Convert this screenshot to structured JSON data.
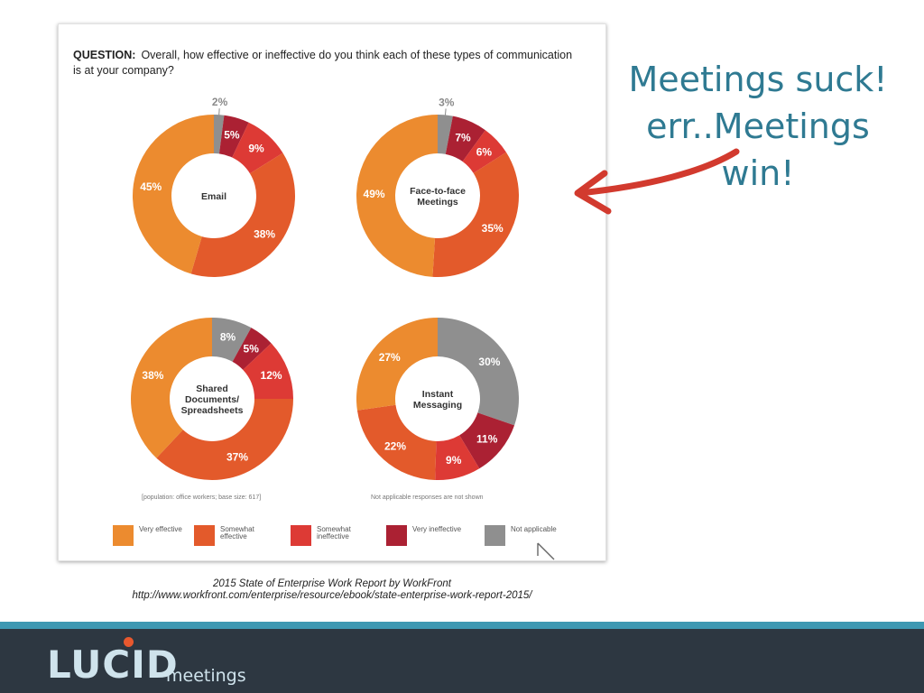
{
  "question": {
    "label": "QUESTION:",
    "text": "Overall, how effective or ineffective do you think each of these types of communication is at your company?"
  },
  "colors": {
    "very_effective": "#ec8b2f",
    "somewhat_effective": "#e35a2b",
    "somewhat_ineffective": "#dd3a35",
    "very_ineffective": "#ab2133",
    "not_applicable": "#8f8f8f"
  },
  "chart_data": [
    {
      "type": "pie",
      "title": "Email",
      "series": [
        {
          "name": "Very effective",
          "value": 45
        },
        {
          "name": "Somewhat effective",
          "value": 38
        },
        {
          "name": "Somewhat ineffective",
          "value": 9
        },
        {
          "name": "Very ineffective",
          "value": 5
        },
        {
          "name": "Not applicable",
          "value": 2
        }
      ]
    },
    {
      "type": "pie",
      "title": "Face-to-face Meetings",
      "series": [
        {
          "name": "Very effective",
          "value": 49
        },
        {
          "name": "Somewhat effective",
          "value": 35
        },
        {
          "name": "Somewhat ineffective",
          "value": 6
        },
        {
          "name": "Very ineffective",
          "value": 7
        },
        {
          "name": "Not applicable",
          "value": 3
        }
      ]
    },
    {
      "type": "pie",
      "title": "Shared Documents/ Spreadsheets",
      "series": [
        {
          "name": "Very effective",
          "value": 38
        },
        {
          "name": "Somewhat effective",
          "value": 37
        },
        {
          "name": "Somewhat ineffective",
          "value": 12
        },
        {
          "name": "Very ineffective",
          "value": 5
        },
        {
          "name": "Not applicable",
          "value": 8
        }
      ]
    },
    {
      "type": "pie",
      "title": "Instant Messaging",
      "series": [
        {
          "name": "Very effective",
          "value": 27
        },
        {
          "name": "Somewhat effective",
          "value": 22
        },
        {
          "name": "Somewhat ineffective",
          "value": 9
        },
        {
          "name": "Very ineffective",
          "value": 11
        },
        {
          "name": "Not applicable",
          "value": 30
        }
      ]
    }
  ],
  "legend": [
    {
      "label": "Very effective"
    },
    {
      "label": "Somewhat effective"
    },
    {
      "label": "Somewhat ineffective"
    },
    {
      "label": "Very ineffective"
    },
    {
      "label": "Not applicable"
    }
  ],
  "notes": {
    "population": "[population: office workers; base size: 617]",
    "not_applicable_note": "Not applicable responses are not shown"
  },
  "headline": {
    "line1": "Meetings suck!",
    "line2": "err..Meetings win!"
  },
  "source": {
    "line1": "2015 State of Enterprise Work Report by WorkFront",
    "line2": "http://www.workfront.com/enterprise/resource/ebook/state-enterprise-work-report-2015/"
  },
  "logo": {
    "main": "LUCID",
    "sub": "meetings"
  }
}
